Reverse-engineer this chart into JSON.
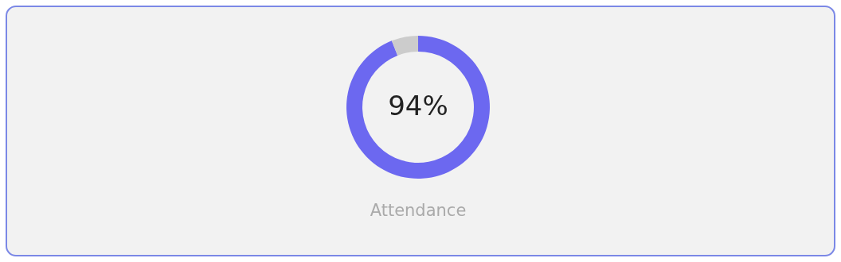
{
  "chart_data": {
    "type": "donut",
    "title": "Attendance",
    "categories": [
      null,
      null
    ],
    "values": [
      94,
      6
    ],
    "colors": [
      "#6c68f0",
      "#cccccc"
    ],
    "value_labels": [
      "94%",
      null
    ]
  }
}
